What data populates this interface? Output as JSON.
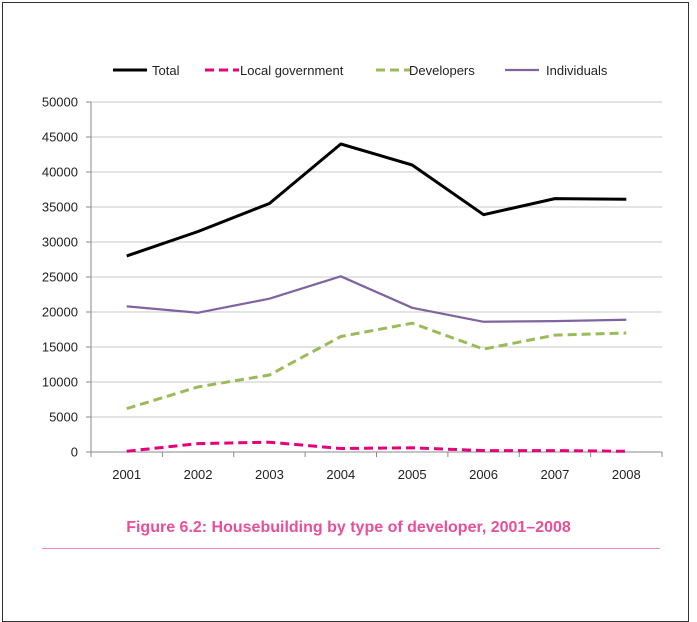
{
  "figure": {
    "caption": "Figure 6.2: Housebuilding by type of developer, 2001–2008"
  },
  "chart_data": {
    "type": "line",
    "title": "",
    "xlabel": "",
    "ylabel": "",
    "x": [
      "2001",
      "2002",
      "2003",
      "2004",
      "2005",
      "2006",
      "2007",
      "2008"
    ],
    "ylim": [
      0,
      50000
    ],
    "yticks": [
      0,
      5000,
      10000,
      15000,
      20000,
      25000,
      30000,
      35000,
      40000,
      45000,
      50000
    ],
    "grid": "horizontal",
    "legend_position": "top",
    "series": [
      {
        "name": "Total",
        "color": "#000000",
        "dash": "solid",
        "values": [
          28000,
          31500,
          35500,
          44000,
          41000,
          33900,
          36200,
          36100
        ]
      },
      {
        "name": "Local government",
        "color": "#e6007e",
        "dash": "dashed",
        "values": [
          100,
          1200,
          1400,
          500,
          600,
          200,
          200,
          100
        ]
      },
      {
        "name": "Developers",
        "color": "#9bbb59",
        "dash": "dashed",
        "values": [
          6200,
          9300,
          11000,
          16500,
          18400,
          14700,
          16700,
          17000
        ]
      },
      {
        "name": "Individuals",
        "color": "#8064a2",
        "dash": "solid",
        "values": [
          20800,
          19900,
          21900,
          25100,
          20600,
          18600,
          18700,
          18900
        ]
      }
    ]
  }
}
